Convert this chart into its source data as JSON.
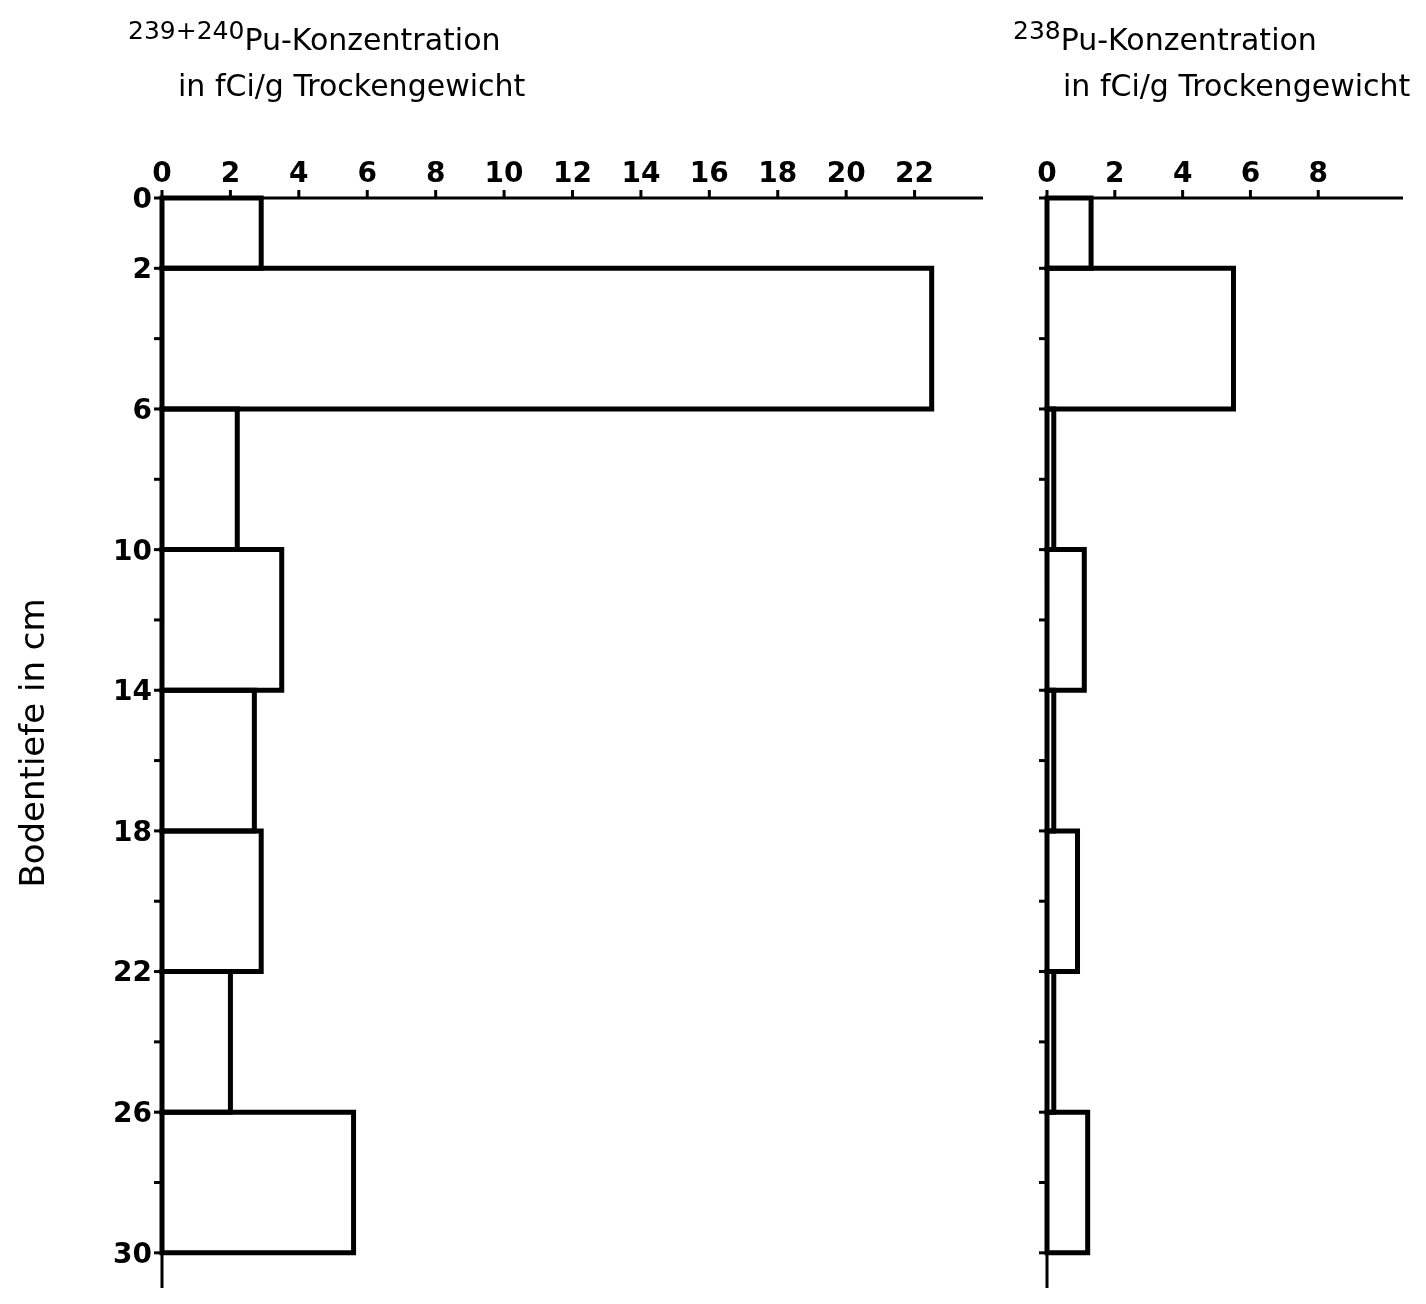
{
  "chart_data": [
    {
      "type": "histogram",
      "orientation": "horizontal",
      "xlabel": "$^{239+240}$Pu-Konzentration\nin fCi/g Trockengewicht",
      "ylabel": "Bodentiefe in cm",
      "color": "#000000",
      "bins": [
        0,
        2,
        6,
        10,
        14,
        18,
        22,
        26,
        30
      ],
      "values": [
        2.9,
        22.5,
        2.2,
        3.5,
        2.7,
        2.9,
        2.0,
        5.6
      ],
      "xlim": [
        0,
        24
      ],
      "xticks": [
        0,
        2,
        4,
        6,
        8,
        10,
        12,
        14,
        16,
        18,
        20,
        22
      ],
      "ylim": [
        31,
        0
      ],
      "yticks": [
        0,
        2,
        {
          "value": 4,
          "label": null
        },
        6,
        {
          "value": 8,
          "label": null
        },
        10,
        {
          "value": 12,
          "label": null
        },
        14,
        {
          "value": 16,
          "label": null
        },
        18,
        {
          "value": 20,
          "label": null
        },
        22,
        {
          "value": 24,
          "label": null
        },
        26,
        {
          "value": 28,
          "label": null
        },
        30
      ]
    },
    {
      "type": "histogram",
      "orientation": "horizontal",
      "xlabel": "$^{238}$Pu-Konzentration\nin fCi/g Trockengewicht",
      "color": "#000000",
      "bins": [
        0,
        2,
        6,
        10,
        14,
        18,
        22,
        26,
        30
      ],
      "values": [
        1.3,
        5.5,
        0.2,
        1.1,
        0.2,
        0.9,
        0.2,
        1.2
      ],
      "xlim": [
        0,
        10.5
      ],
      "xticks": [
        0,
        2,
        4,
        6,
        8
      ],
      "ylim": [
        31,
        0
      ],
      "yticks": [
        0,
        2,
        4,
        6,
        8,
        10,
        12,
        14,
        16,
        18,
        20,
        22,
        24,
        26,
        28,
        30
      ],
      "tick_labels": "x"
    }
  ]
}
